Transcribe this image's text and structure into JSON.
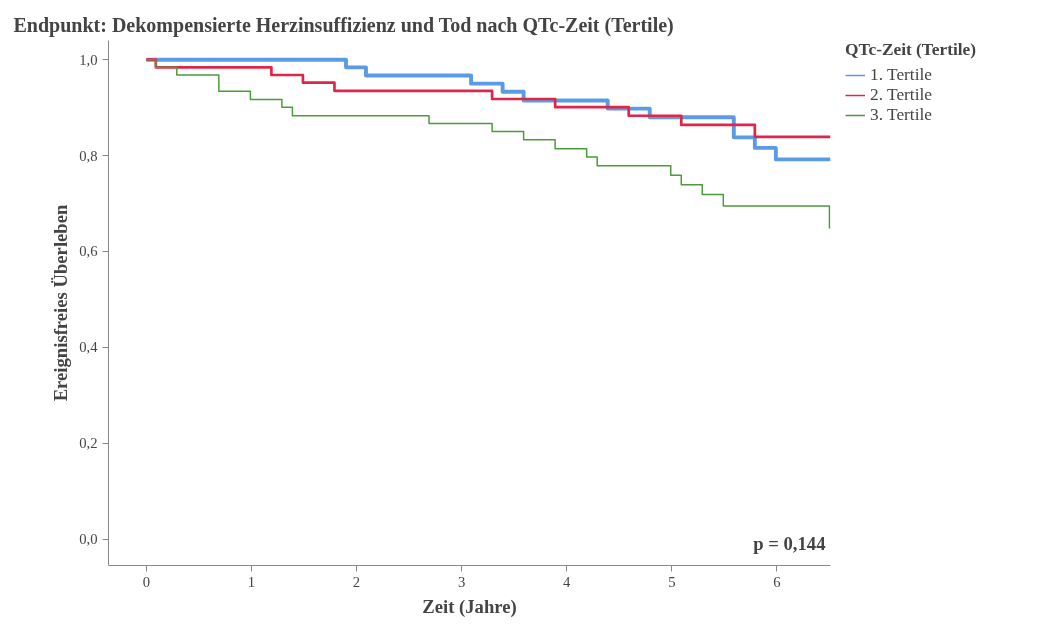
{
  "chart_data": {
    "type": "step",
    "title": "Endpunkt: Dekompensierte Herzinsuffizienz und Tod nach QTc-Zeit (Tertile)",
    "xlabel": "Zeit (Jahre)",
    "ylabel": "Ereignisfreies Überleben",
    "legend_title": "QTc-Zeit (Tertile)",
    "series": [
      {
        "name": "1. Tertile",
        "color": "#5b9be6",
        "x": [
          0,
          1.9,
          2.09,
          3.09,
          3.39,
          3.59,
          4.39,
          4.79,
          5.59,
          5.79,
          5.99,
          6.51
        ],
        "values": [
          1.0,
          0.984,
          0.967,
          0.95,
          0.933,
          0.915,
          0.898,
          0.88,
          0.838,
          0.816,
          0.792,
          0.792
        ]
      },
      {
        "name": "2. Tertile",
        "color": "#e0254a",
        "x": [
          0,
          0.09,
          1.19,
          1.49,
          1.79,
          3.29,
          3.89,
          4.59,
          5.09,
          5.79,
          6.51
        ],
        "values": [
          1.0,
          0.984,
          0.968,
          0.952,
          0.935,
          0.918,
          0.901,
          0.883,
          0.864,
          0.839,
          0.839
        ]
      },
      {
        "name": "3. Tertile",
        "color": "#4a9c3a",
        "x": [
          0,
          0.09,
          0.29,
          0.69,
          0.99,
          1.29,
          1.39,
          2.69,
          3.29,
          3.59,
          3.89,
          4.19,
          4.29,
          4.99,
          5.09,
          5.29,
          5.49,
          6.5
        ],
        "values": [
          1.0,
          0.984,
          0.968,
          0.934,
          0.917,
          0.901,
          0.883,
          0.867,
          0.85,
          0.833,
          0.814,
          0.797,
          0.779,
          0.759,
          0.739,
          0.719,
          0.695,
          0.648
        ]
      }
    ],
    "xlim": [
      -0.36,
      6.51
    ],
    "ylim": [
      -0.055,
      1.04
    ],
    "xticks": [
      0,
      1,
      2,
      3,
      4,
      5,
      6
    ],
    "yticks": [
      {
        "value": 0,
        "label": "0,0"
      },
      {
        "value": 0.2,
        "label": "0,2"
      },
      {
        "value": 0.4,
        "label": "0,4"
      },
      {
        "value": 0.6,
        "label": "0,6"
      },
      {
        "value": 0.8,
        "label": "0,8"
      },
      {
        "value": 1.0,
        "label": "1,0"
      }
    ],
    "annotations": [
      "p = 0,144"
    ],
    "legend": "right",
    "grid": false
  }
}
